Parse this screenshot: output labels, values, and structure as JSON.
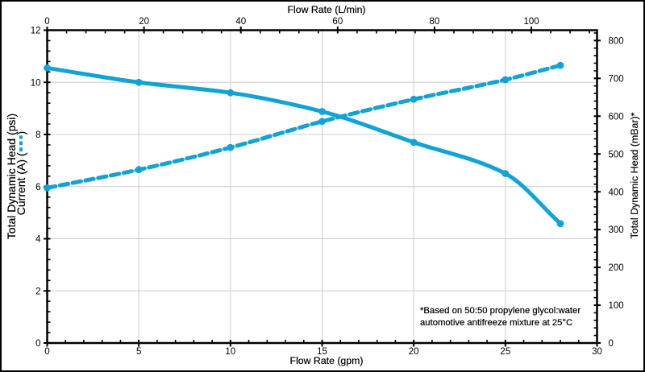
{
  "window": {
    "background": "#ffffff",
    "border_color": "#000000"
  },
  "chart_data": {
    "type": "line",
    "series": [
      {
        "name": "Total Dynamic Head",
        "line_style": "solid",
        "x_gpm": [
          0,
          5,
          10,
          15,
          20,
          25,
          28
        ],
        "values_psi": [
          10.55,
          10.0,
          9.6,
          8.88,
          7.7,
          6.5,
          4.58
        ]
      },
      {
        "name": "Current",
        "line_style": "dashed",
        "x_gpm": [
          0,
          5,
          10,
          15,
          20,
          25,
          28
        ],
        "values_A": [
          5.95,
          6.65,
          7.5,
          8.5,
          9.35,
          10.1,
          10.65
        ]
      }
    ],
    "axes": {
      "bottom": {
        "label": "Flow Rate (gpm)",
        "min": 0,
        "max": 30,
        "major_ticks": [
          0,
          5,
          10,
          15,
          20,
          25,
          30
        ],
        "minor_step": 1
      },
      "top": {
        "label": "Flow Rate (L/min)",
        "min": 0,
        "max": 113.562,
        "major_ticks": [
          0,
          20,
          40,
          60,
          80,
          100
        ],
        "minor_step": 4
      },
      "left": {
        "label_line1": "Total Dynamic Head (psi)",
        "label_line2_prefix": "Current (A) (",
        "label_line2_suffix": ")",
        "min": 0,
        "max": 12,
        "major_ticks": [
          0,
          2,
          4,
          6,
          8,
          10,
          12
        ],
        "minor_step": 0.4
      },
      "right": {
        "label": "Total Dynamic Head (mBar)*",
        "min": 0,
        "max": 827.37,
        "major_ticks": [
          0,
          100,
          200,
          300,
          400,
          500,
          600,
          700,
          800
        ],
        "minor_step": 20
      }
    },
    "gridlines": {
      "x_gpm": [
        5,
        10,
        15,
        20,
        25
      ],
      "y_psi": [
        2,
        4,
        6,
        8,
        10
      ]
    },
    "annotation": {
      "line1": "*Based on 50:50 propylene glycol:water",
      "line2": "automotive antifreeze mixture at 25°C"
    },
    "colors": {
      "series": "#11a3d4",
      "grid": "#cccccc",
      "axis": "#000000",
      "text": "#000000"
    }
  }
}
